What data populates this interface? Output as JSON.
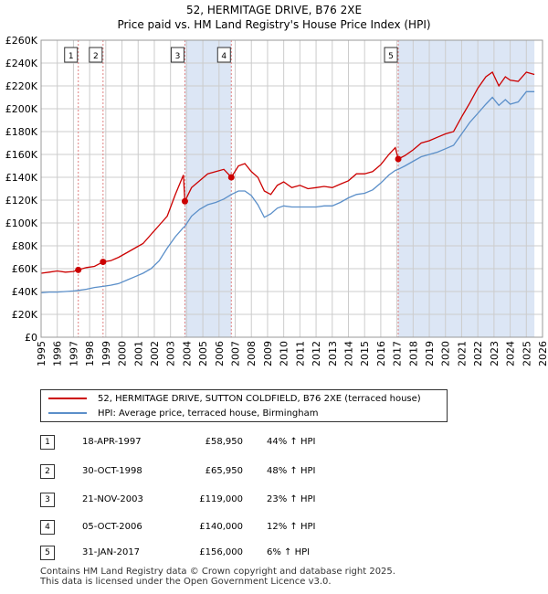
{
  "title_line1": "52, HERMITAGE DRIVE, B76 2XE",
  "title_line2": "Price paid vs. HM Land Registry's House Price Index (HPI)",
  "colors": {
    "property": "#cc0000",
    "hpi": "#5b8fc9",
    "shade": "#dce6f5",
    "grid": "#cccccc",
    "vline": "#e08080"
  },
  "legend": {
    "property_label": "52, HERMITAGE DRIVE, SUTTON COLDFIELD, B76 2XE (terraced house)",
    "hpi_label": "HPI: Average price, terraced house, Birmingham"
  },
  "transactions": [
    {
      "num": "1",
      "date": "18-APR-1997",
      "price": "£58,950",
      "hpi": "44% ↑ HPI"
    },
    {
      "num": "2",
      "date": "30-OCT-1998",
      "price": "£65,950",
      "hpi": "48% ↑ HPI"
    },
    {
      "num": "3",
      "date": "21-NOV-2003",
      "price": "£119,000",
      "hpi": "23% ↑ HPI"
    },
    {
      "num": "4",
      "date": "05-OCT-2006",
      "price": "£140,000",
      "hpi": "12% ↑ HPI"
    },
    {
      "num": "5",
      "date": "31-JAN-2017",
      "price": "£156,000",
      "hpi": "6% ↑ HPI"
    }
  ],
  "footer_line1": "Contains HM Land Registry data © Crown copyright and database right 2025.",
  "footer_line2": "This data is licensed under the Open Government Licence v3.0.",
  "chart_data": {
    "type": "line",
    "title": "52, HERMITAGE DRIVE, B76 2XE",
    "subtitle": "Price paid vs. HM Land Registry's House Price Index (HPI)",
    "xlim": [
      1995,
      2026
    ],
    "ylim": [
      0,
      260000
    ],
    "x_ticks": [
      "1995",
      "1996",
      "1997",
      "1998",
      "1999",
      "2000",
      "2001",
      "2002",
      "2003",
      "2004",
      "2005",
      "2006",
      "2007",
      "2008",
      "2009",
      "2010",
      "2011",
      "2012",
      "2013",
      "2014",
      "2015",
      "2016",
      "2017",
      "2018",
      "2019",
      "2020",
      "2021",
      "2022",
      "2023",
      "2024",
      "2025",
      "2026"
    ],
    "y_ticks": [
      {
        "v": 0,
        "label": "£0"
      },
      {
        "v": 20000,
        "label": "£20K"
      },
      {
        "v": 40000,
        "label": "£40K"
      },
      {
        "v": 60000,
        "label": "£60K"
      },
      {
        "v": 80000,
        "label": "£80K"
      },
      {
        "v": 100000,
        "label": "£100K"
      },
      {
        "v": 120000,
        "label": "£120K"
      },
      {
        "v": 140000,
        "label": "£140K"
      },
      {
        "v": 160000,
        "label": "£160K"
      },
      {
        "v": 180000,
        "label": "£180K"
      },
      {
        "v": 200000,
        "label": "£200K"
      },
      {
        "v": 220000,
        "label": "£220K"
      },
      {
        "v": 240000,
        "label": "£240K"
      },
      {
        "v": 260000,
        "label": "£260K"
      }
    ],
    "shaded_ranges": [
      [
        2003.89,
        2006.76
      ],
      [
        2017.08,
        2025.5
      ]
    ],
    "sales": [
      {
        "label": "1",
        "x": 1997.3,
        "y": 58950
      },
      {
        "label": "2",
        "x": 1998.83,
        "y": 65950
      },
      {
        "label": "3",
        "x": 2003.89,
        "y": 119000
      },
      {
        "label": "4",
        "x": 2006.76,
        "y": 140000
      },
      {
        "label": "5",
        "x": 2017.08,
        "y": 156000
      }
    ],
    "series": [
      {
        "name": "52, HERMITAGE DRIVE, SUTTON COLDFIELD, B76 2XE (terraced house)",
        "x": [
          1995,
          1995.5,
          1996,
          1996.5,
          1997,
          1997.3,
          1997.8,
          1998.3,
          1998.83,
          1999.3,
          1999.8,
          2000.3,
          2000.8,
          2001.3,
          2001.8,
          2002.3,
          2002.8,
          2003.3,
          2003.8,
          2003.89,
          2004.3,
          2004.8,
          2005.3,
          2005.8,
          2006.3,
          2006.76,
          2007.2,
          2007.6,
          2008.0,
          2008.4,
          2008.8,
          2009.2,
          2009.6,
          2010.0,
          2010.5,
          2011.0,
          2011.5,
          2012.0,
          2012.5,
          2013.0,
          2013.5,
          2014.0,
          2014.5,
          2015.0,
          2015.5,
          2016.0,
          2016.5,
          2016.9,
          2017.08,
          2017.5,
          2018.0,
          2018.5,
          2019.0,
          2019.5,
          2020.0,
          2020.5,
          2021.0,
          2021.5,
          2022.0,
          2022.5,
          2022.9,
          2023.3,
          2023.7,
          2024.0,
          2024.5,
          2025.0,
          2025.5
        ],
        "y": [
          56000,
          57000,
          58000,
          57000,
          57500,
          58950,
          61000,
          62000,
          65950,
          67000,
          70000,
          74000,
          78000,
          82000,
          90000,
          98000,
          106000,
          125000,
          142000,
          119000,
          131000,
          137000,
          143000,
          145000,
          147000,
          140000,
          150000,
          152000,
          145000,
          140000,
          128000,
          125000,
          133000,
          136000,
          131000,
          133000,
          130000,
          131000,
          132000,
          131000,
          134000,
          137000,
          143000,
          143000,
          145000,
          151000,
          160000,
          166000,
          156000,
          159000,
          164000,
          170000,
          172000,
          175000,
          178000,
          180000,
          193000,
          205000,
          218000,
          228000,
          232000,
          220000,
          228000,
          225000,
          224000,
          232000,
          230000
        ]
      },
      {
        "name": "HPI: Average price, terraced house, Birmingham",
        "x": [
          1995,
          1995.5,
          1996,
          1996.5,
          1997,
          1997.3,
          1997.8,
          1998.3,
          1998.83,
          1999.3,
          1999.8,
          2000.3,
          2000.8,
          2001.3,
          2001.8,
          2002.3,
          2002.8,
          2003.3,
          2003.8,
          2003.89,
          2004.3,
          2004.8,
          2005.3,
          2005.8,
          2006.3,
          2006.76,
          2007.2,
          2007.6,
          2008.0,
          2008.4,
          2008.8,
          2009.2,
          2009.6,
          2010.0,
          2010.5,
          2011.0,
          2011.5,
          2012.0,
          2012.5,
          2013.0,
          2013.5,
          2014.0,
          2014.5,
          2015.0,
          2015.5,
          2016.0,
          2016.5,
          2016.9,
          2017.08,
          2017.5,
          2018.0,
          2018.5,
          2019.0,
          2019.5,
          2020.0,
          2020.5,
          2021.0,
          2021.5,
          2022.0,
          2022.5,
          2022.9,
          2023.3,
          2023.7,
          2024.0,
          2024.5,
          2025.0,
          2025.5
        ],
        "y": [
          39000,
          39500,
          39500,
          40000,
          40500,
          41000,
          42000,
          43500,
          44500,
          45500,
          47000,
          50000,
          53000,
          56000,
          60000,
          67000,
          78000,
          88000,
          96000,
          97000,
          106000,
          112000,
          116000,
          118000,
          121000,
          125000,
          128000,
          128000,
          124000,
          116000,
          105000,
          108000,
          113000,
          115000,
          114000,
          114000,
          114000,
          114000,
          115000,
          115000,
          118000,
          122000,
          125000,
          126000,
          129000,
          135000,
          142000,
          146000,
          147000,
          150000,
          154000,
          158000,
          160000,
          162000,
          165000,
          168000,
          178000,
          188000,
          196000,
          204000,
          210000,
          203000,
          208000,
          204000,
          206000,
          215000,
          215000
        ]
      }
    ]
  }
}
